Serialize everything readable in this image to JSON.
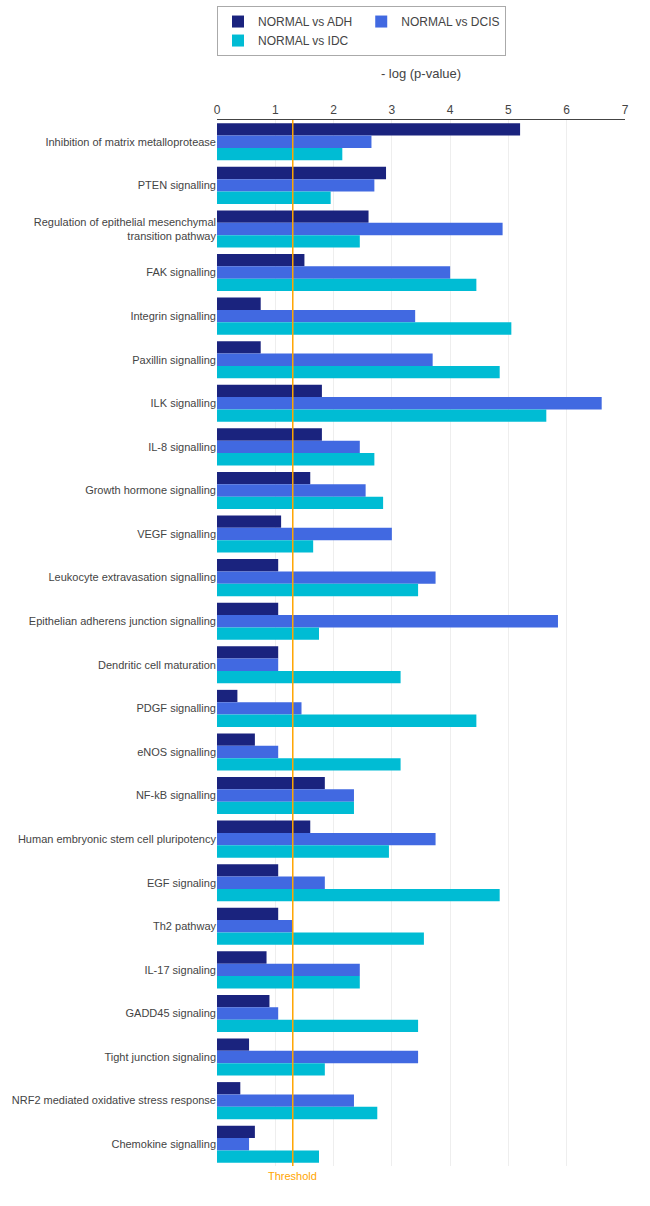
{
  "chart_data": {
    "type": "bar",
    "orientation": "horizontal",
    "xlabel": "- log (p-value)",
    "categories": [
      "Inhibition of matrix metalloprotease",
      "PTEN signalling",
      "Regulation of epithelial mesenchymal\ntransition pathway",
      "FAK signalling",
      "Integrin signalling",
      "Paxillin signalling",
      "ILK signalling",
      "IL-8 signalling",
      "Growth hormone signalling",
      "VEGF signalling",
      "Leukocyte extravasation signalling",
      "Epithelian adherens junction signalling",
      "Dendritic cell maturation",
      "PDGF signalling",
      "eNOS signalling",
      "NF-kB signalling",
      "Human embryonic stem cell pluripotency",
      "EGF signaling",
      "Th2 pathway",
      "IL-17 signaling",
      "GADD45 signaling",
      "Tight junction signaling",
      "NRF2 mediated oxidative stress response",
      "Chemokine signalling"
    ],
    "series": [
      {
        "name": "NORMAL vs ADH",
        "color": "#1a237e",
        "values": [
          5.2,
          2.9,
          2.6,
          1.5,
          0.75,
          0.75,
          1.8,
          1.8,
          1.6,
          1.1,
          1.05,
          1.05,
          1.05,
          0.35,
          0.65,
          1.85,
          1.6,
          1.05,
          1.05,
          0.85,
          0.9,
          0.55,
          0.4,
          0.65
        ]
      },
      {
        "name": "NORMAL vs DCIS",
        "color": "#4169e1",
        "values": [
          2.65,
          2.7,
          4.9,
          4.0,
          3.4,
          3.7,
          6.6,
          2.45,
          2.55,
          3.0,
          3.75,
          5.85,
          1.05,
          1.45,
          1.05,
          2.35,
          3.75,
          1.85,
          1.3,
          2.45,
          1.05,
          3.45,
          2.35,
          0.55
        ]
      },
      {
        "name": "NORMAL vs IDC",
        "color": "#00bcd4",
        "values": [
          2.15,
          1.95,
          2.45,
          4.45,
          5.05,
          4.85,
          5.65,
          2.7,
          2.85,
          1.65,
          3.45,
          1.75,
          3.15,
          4.45,
          3.15,
          2.35,
          2.95,
          4.85,
          3.55,
          2.45,
          3.45,
          1.85,
          2.75,
          1.75
        ]
      }
    ],
    "threshold": {
      "value": 1.3,
      "label": "Threshold",
      "color": "#FFA500"
    },
    "xlim": [
      0,
      7
    ],
    "xticks": [
      0,
      1,
      2,
      3,
      4,
      5,
      6,
      7
    ],
    "grid": true,
    "legend": "upper left"
  }
}
